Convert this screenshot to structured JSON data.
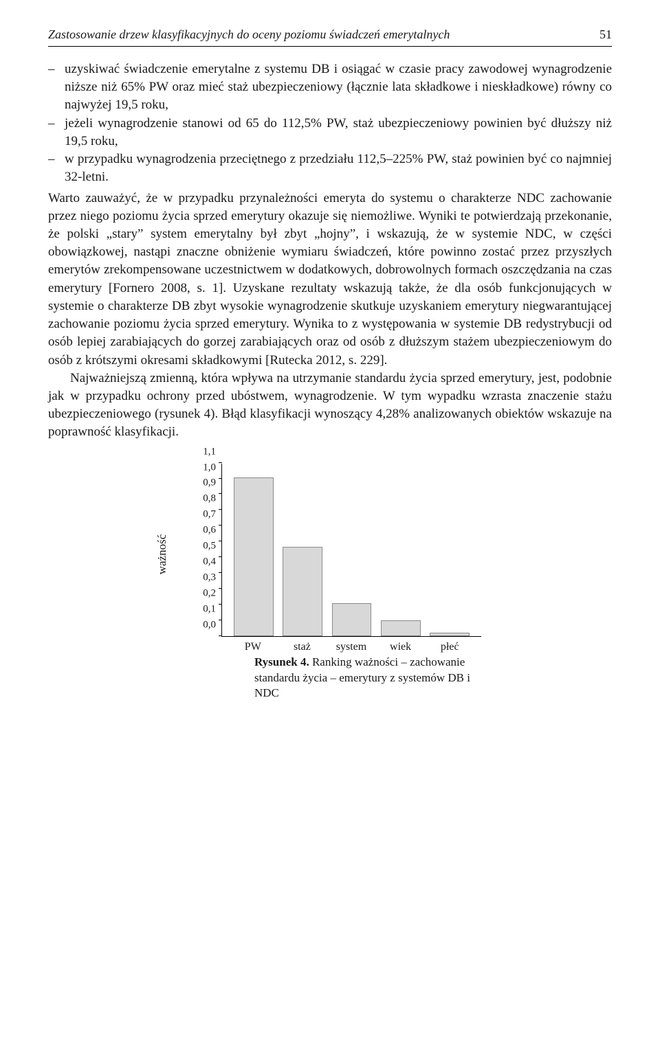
{
  "header": {
    "running_title": "Zastosowanie drzew klasyfikacyjnych do oceny poziomu świadczeń emerytalnych",
    "page_number": "51"
  },
  "bullets": [
    "uzyskiwać świadczenie emerytalne z systemu DB i osiągać w czasie pracy zawodowej wynagrodzenie niższe niż 65% PW oraz mieć staż ubezpieczeniowy (łącznie lata składkowe i nieskładkowe) równy co najwyżej 19,5 roku,",
    "jeżeli wynagrodzenie stanowi od 65 do 112,5% PW, staż ubezpieczeniowy powinien być dłuższy niż 19,5 roku,",
    "w przypadku wynagrodzenia przeciętnego z przedziału 112,5–225% PW, staż powinien być co najmniej 32-letni."
  ],
  "paragraphs": [
    "Warto zauważyć, że w przypadku przynależności emeryta do systemu o charakterze NDC zachowanie przez niego poziomu życia sprzed emerytury okazuje się niemożliwe. Wyniki te potwierdzają przekonanie, że polski „stary” system emerytalny był zbyt „hojny”, i wskazują, że w systemie NDC, w części obowiązkowej, nastąpi znaczne obniżenie wymiaru świadczeń, które powinno zostać przez przyszłych emerytów zrekompensowane uczestnictwem w dodatkowych, dobrowolnych formach oszczędzania na czas emerytury [Fornero 2008, s. 1]. Uzyskane rezultaty wskazują także, że dla osób funkcjonujących w systemie o charakterze DB zbyt wysokie wynagrodzenie skutkuje uzyskaniem emerytury niegwarantującej zachowanie poziomu życia sprzed emerytury. Wynika to z występowania w systemie DB redystrybucji od osób lepiej zarabiających do gorzej zarabiających oraz od osób z dłuższym stażem ubezpieczeniowym do osób z krótszymi okresami składkowymi [Rutecka 2012, s. 229].",
    "Najważniejszą zmienną, która wpływa na utrzymanie standardu życia sprzed emerytury, jest, podobnie jak w przypadku ochrony przed ubóstwem, wynagrodzenie. W tym wypadku wzrasta znaczenie stażu ubezpieczeniowego (rysunek 4). Błąd klasyfikacji wynoszący 4,28% analizowanych obiektów wskazuje na poprawność klasyfikacji."
  ],
  "chart": {
    "type": "bar",
    "y_label": "ważność",
    "y_ticks": [
      "0,0",
      "0,1",
      "0,2",
      "0,3",
      "0,4",
      "0,5",
      "0,6",
      "0,7",
      "0,8",
      "0,9",
      "1,0",
      "1,1"
    ],
    "y_max": 1.1,
    "categories": [
      "PW",
      "staż",
      "system",
      "wiek",
      "płeć"
    ],
    "values": [
      1.0,
      0.56,
      0.2,
      0.09,
      0.01
    ],
    "bar_fill": "#d8d8d8",
    "bar_stroke": "#8a8a8a",
    "axis_color": "#000000",
    "tick_fontsize": 15,
    "label_fontsize": 17
  },
  "caption": {
    "label": "Rysunek 4.",
    "text": "Ranking ważności – zachowanie standardu życia – emerytury z systemów DB i NDC"
  }
}
